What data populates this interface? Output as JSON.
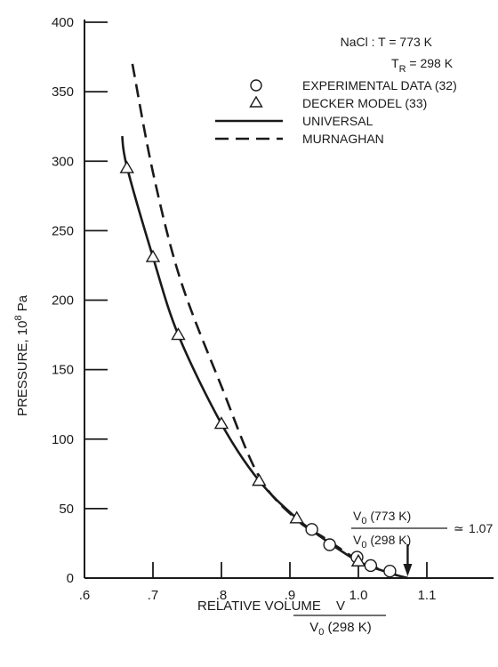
{
  "chart_data": {
    "type": "line",
    "condition": {
      "line1": "NaCl : T = 773 K",
      "line2_main": "T",
      "line2_sub": "R",
      "line2_rest": " = 298 K"
    },
    "ylabel_main": "PRESSURE, 10",
    "ylabel_sup": "8",
    "ylabel_unit": " Pa",
    "xlabel_main": "RELATIVE VOLUME",
    "xlabel_num": "V",
    "xlabel_den_main": "V",
    "xlabel_den_sub": "0",
    "xlabel_den_rest": " (298 K)",
    "xlim": [
      0.6,
      1.2
    ],
    "ylim": [
      0,
      400
    ],
    "x_ticks": [
      {
        "v": 0.6,
        "label": ".6"
      },
      {
        "v": 0.7,
        "label": ".7"
      },
      {
        "v": 0.8,
        "label": ".8"
      },
      {
        "v": 0.9,
        "label": ".9"
      },
      {
        "v": 1.0,
        "label": "1.0"
      },
      {
        "v": 1.1,
        "label": "1.1"
      }
    ],
    "y_ticks": [
      {
        "v": 0,
        "label": "0"
      },
      {
        "v": 50,
        "label": "50"
      },
      {
        "v": 100,
        "label": "100"
      },
      {
        "v": 150,
        "label": "150"
      },
      {
        "v": 200,
        "label": "200"
      },
      {
        "v": 250,
        "label": "250"
      },
      {
        "v": 300,
        "label": "300"
      },
      {
        "v": 350,
        "label": "350"
      },
      {
        "v": 400,
        "label": "400"
      }
    ],
    "series": [
      {
        "name": "EXPERIMENTAL DATA (32)",
        "marker": "circle",
        "x": [
          0.932,
          0.958,
          0.998,
          1.018,
          1.046
        ],
        "y": [
          35,
          24,
          15,
          9,
          5
        ]
      },
      {
        "name": "DECKER MODEL (33)",
        "marker": "triangle",
        "x": [
          0.662,
          0.7,
          0.737,
          0.8,
          0.855,
          0.91,
          1.0
        ],
        "y": [
          295,
          231,
          175,
          111,
          70,
          43,
          12
        ]
      },
      {
        "name": "UNIVERSAL",
        "style": "solid",
        "x": [
          0.655,
          0.662,
          0.7,
          0.737,
          0.8,
          0.855,
          0.91,
          0.95,
          1.0,
          1.05,
          1.072
        ],
        "y": [
          318,
          296,
          231,
          175,
          111,
          70,
          43,
          28,
          12,
          3,
          0
        ]
      },
      {
        "name": "MURNAGHAN",
        "style": "dashed",
        "x": [
          0.67,
          0.7,
          0.74,
          0.8,
          0.855,
          0.91,
          0.95,
          1.0,
          1.05,
          1.072
        ],
        "y": [
          370,
          292,
          215,
          138,
          73,
          42,
          29,
          13,
          3,
          0
        ]
      }
    ],
    "annotation": {
      "num_main": "V",
      "num_sub": "0",
      "num_rest": " (773 K)",
      "den_main": "V",
      "den_sub": "0",
      "den_rest": " (298 K)",
      "approx": "≃",
      "value": "1.07",
      "arrow_x": 1.072
    }
  }
}
